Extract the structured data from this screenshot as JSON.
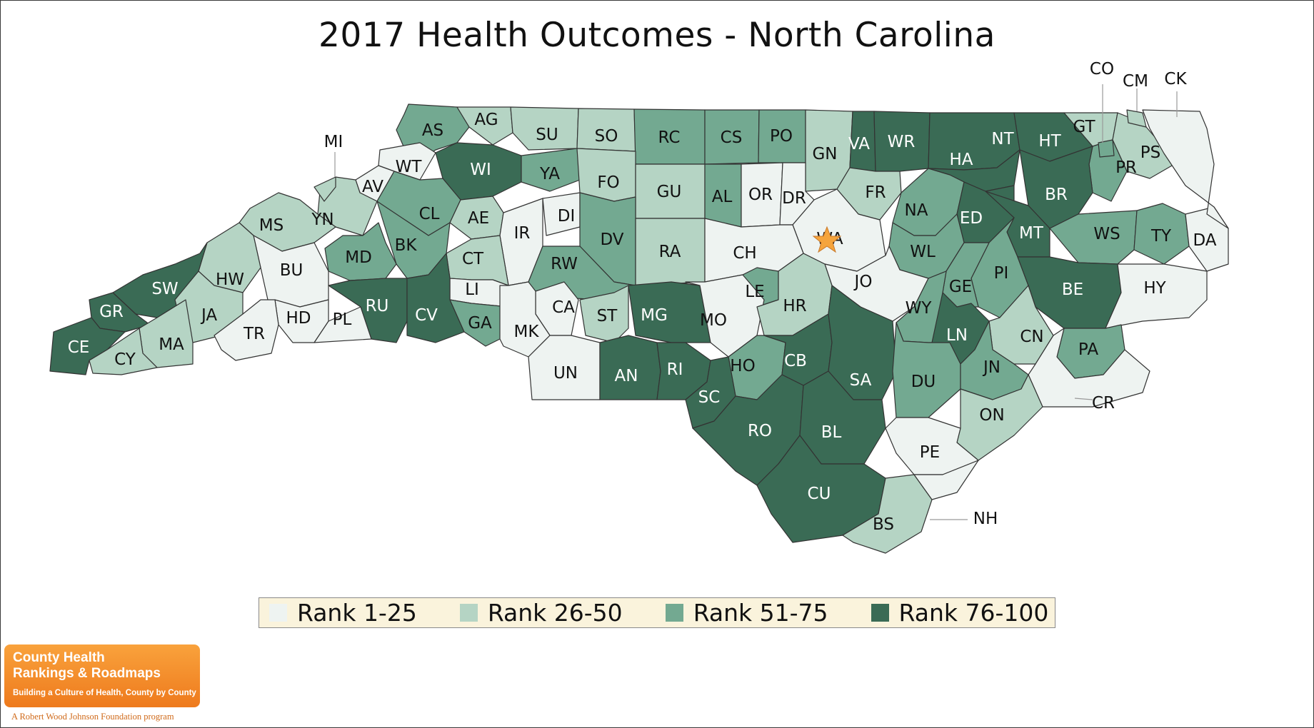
{
  "title": "2017 Health Outcomes - North Carolina",
  "colors": {
    "rank_1_25": "#eef3f1",
    "rank_26_50": "#b5d4c4",
    "rank_51_75": "#73a991",
    "rank_76_100": "#3a6b55",
    "outline": "#333333",
    "highlight_star": "#f5a43c"
  },
  "legend": [
    {
      "label": "Rank 1-25",
      "color_key": "rank_1_25"
    },
    {
      "label": "Rank 26-50",
      "color_key": "rank_26_50"
    },
    {
      "label": "Rank 51-75",
      "color_key": "rank_51_75"
    },
    {
      "label": "Rank 76-100",
      "color_key": "rank_76_100"
    }
  ],
  "counties": [
    {
      "abbr": "AS",
      "tier": 3
    },
    {
      "abbr": "AG",
      "tier": 2
    },
    {
      "abbr": "SU",
      "tier": 2
    },
    {
      "abbr": "SO",
      "tier": 2
    },
    {
      "abbr": "RC",
      "tier": 3
    },
    {
      "abbr": "CS",
      "tier": 3
    },
    {
      "abbr": "PO",
      "tier": 3
    },
    {
      "abbr": "GN",
      "tier": 2
    },
    {
      "abbr": "VA",
      "tier": 4
    },
    {
      "abbr": "WR",
      "tier": 4
    },
    {
      "abbr": "NT",
      "tier": 4
    },
    {
      "abbr": "HT",
      "tier": 4
    },
    {
      "abbr": "GT",
      "tier": 2
    },
    {
      "abbr": "PS",
      "tier": 2
    },
    {
      "abbr": "PR",
      "tier": 3
    },
    {
      "abbr": "HA",
      "tier": 4
    },
    {
      "abbr": "WT",
      "tier": 1
    },
    {
      "abbr": "WI",
      "tier": 4
    },
    {
      "abbr": "YA",
      "tier": 3
    },
    {
      "abbr": "FO",
      "tier": 2
    },
    {
      "abbr": "GU",
      "tier": 2
    },
    {
      "abbr": "AL",
      "tier": 3
    },
    {
      "abbr": "OR",
      "tier": 1
    },
    {
      "abbr": "DR",
      "tier": 1
    },
    {
      "abbr": "FR",
      "tier": 2
    },
    {
      "abbr": "BR",
      "tier": 4
    },
    {
      "abbr": "AV",
      "tier": 1
    },
    {
      "abbr": "YN",
      "tier": 2
    },
    {
      "abbr": "MS",
      "tier": 2
    },
    {
      "abbr": "CL",
      "tier": 3
    },
    {
      "abbr": "AE",
      "tier": 2
    },
    {
      "abbr": "IR",
      "tier": 1
    },
    {
      "abbr": "DI",
      "tier": 1
    },
    {
      "abbr": "DV",
      "tier": 3
    },
    {
      "abbr": "RA",
      "tier": 2
    },
    {
      "abbr": "WA",
      "tier": 1
    },
    {
      "abbr": "NA",
      "tier": 3
    },
    {
      "abbr": "ED",
      "tier": 4
    },
    {
      "abbr": "MT",
      "tier": 4
    },
    {
      "abbr": "WS",
      "tier": 3
    },
    {
      "abbr": "TY",
      "tier": 3
    },
    {
      "abbr": "DA",
      "tier": 1
    },
    {
      "abbr": "MD",
      "tier": 3
    },
    {
      "abbr": "BK",
      "tier": 3
    },
    {
      "abbr": "CT",
      "tier": 2
    },
    {
      "abbr": "RW",
      "tier": 3
    },
    {
      "abbr": "CH",
      "tier": 1
    },
    {
      "abbr": "WL",
      "tier": 3
    },
    {
      "abbr": "PI",
      "tier": 3
    },
    {
      "abbr": "BU",
      "tier": 1
    },
    {
      "abbr": "HW",
      "tier": 2
    },
    {
      "abbr": "SW",
      "tier": 4
    },
    {
      "abbr": "LI",
      "tier": 1
    },
    {
      "abbr": "JO",
      "tier": 1
    },
    {
      "abbr": "LE",
      "tier": 3
    },
    {
      "abbr": "GE",
      "tier": 3
    },
    {
      "abbr": "BE",
      "tier": 4
    },
    {
      "abbr": "HY",
      "tier": 1
    },
    {
      "abbr": "GR",
      "tier": 4
    },
    {
      "abbr": "JA",
      "tier": 2
    },
    {
      "abbr": "RU",
      "tier": 4
    },
    {
      "abbr": "CV",
      "tier": 4
    },
    {
      "abbr": "CA",
      "tier": 1
    },
    {
      "abbr": "ST",
      "tier": 2
    },
    {
      "abbr": "MG",
      "tier": 4
    },
    {
      "abbr": "MO",
      "tier": 1
    },
    {
      "abbr": "HR",
      "tier": 2
    },
    {
      "abbr": "WY",
      "tier": 3
    },
    {
      "abbr": "HD",
      "tier": 1
    },
    {
      "abbr": "PL",
      "tier": 1
    },
    {
      "abbr": "TR",
      "tier": 1
    },
    {
      "abbr": "MA",
      "tier": 2
    },
    {
      "abbr": "GA",
      "tier": 3
    },
    {
      "abbr": "MK",
      "tier": 1
    },
    {
      "abbr": "LN",
      "tier": 4
    },
    {
      "abbr": "CN",
      "tier": 2
    },
    {
      "abbr": "CE",
      "tier": 4
    },
    {
      "abbr": "CY",
      "tier": 2
    },
    {
      "abbr": "UN",
      "tier": 1
    },
    {
      "abbr": "AN",
      "tier": 4
    },
    {
      "abbr": "RI",
      "tier": 4
    },
    {
      "abbr": "HO",
      "tier": 3
    },
    {
      "abbr": "CB",
      "tier": 4
    },
    {
      "abbr": "SA",
      "tier": 4
    },
    {
      "abbr": "DU",
      "tier": 3
    },
    {
      "abbr": "JN",
      "tier": 3
    },
    {
      "abbr": "PA",
      "tier": 3
    },
    {
      "abbr": "SC",
      "tier": 4
    },
    {
      "abbr": "CR",
      "tier": 1
    },
    {
      "abbr": "RO",
      "tier": 4
    },
    {
      "abbr": "BL",
      "tier": 4
    },
    {
      "abbr": "ON",
      "tier": 2
    },
    {
      "abbr": "PE",
      "tier": 1
    },
    {
      "abbr": "CU",
      "tier": 4
    },
    {
      "abbr": "BS",
      "tier": 2
    },
    {
      "abbr": "NH",
      "tier": 1
    },
    {
      "abbr": "MI",
      "tier": 2
    },
    {
      "abbr": "CO",
      "tier": 3
    },
    {
      "abbr": "CM",
      "tier": 2
    },
    {
      "abbr": "CK",
      "tier": 1
    }
  ],
  "highlighted_county": "WA",
  "logo": {
    "line1": "County Health",
    "line2": "Rankings & Roadmaps",
    "tagline": "Building a Culture of Health, County by County",
    "sub": "A Robert Wood Johnson Foundation program"
  }
}
